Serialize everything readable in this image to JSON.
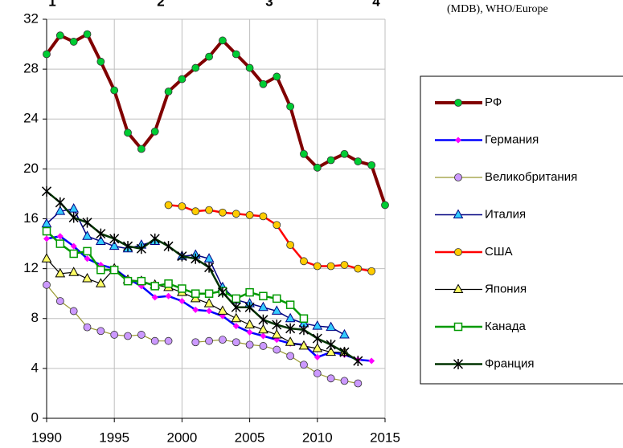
{
  "chart_data": {
    "type": "line",
    "annotations": [
      "1",
      "2",
      "3",
      "4"
    ],
    "source_note": "(MDB), WHO/Europe",
    "x": [
      1990,
      1991,
      1992,
      1993,
      1994,
      1995,
      1996,
      1997,
      1998,
      1999,
      2000,
      2001,
      2002,
      2003,
      2004,
      2005,
      2006,
      2007,
      2008,
      2009,
      2010,
      2011,
      2012,
      2013,
      2014,
      2015
    ],
    "xlim": [
      1990,
      2015
    ],
    "xticks": [
      1990,
      1995,
      2000,
      2005,
      2010,
      2015
    ],
    "ylim": [
      0,
      32
    ],
    "yticks": [
      0,
      4,
      8,
      12,
      16,
      20,
      24,
      28,
      32
    ],
    "grid": true,
    "legend": "right",
    "series": [
      {
        "name": "РФ",
        "color": "#800000",
        "marker": "circle",
        "marker_color": "#00cc33",
        "width": 4,
        "values": [
          29.2,
          30.7,
          30.2,
          30.8,
          28.6,
          26.3,
          22.9,
          21.6,
          23.0,
          26.2,
          27.2,
          28.1,
          29.0,
          30.3,
          29.2,
          28.1,
          26.8,
          27.4,
          25.0,
          21.2,
          20.1,
          20.7,
          21.2,
          20.6,
          20.3,
          17.1
        ]
      },
      {
        "name": "Германия",
        "color": "#0000ff",
        "marker": "diamond",
        "marker_color": "#ff00ff",
        "width": 2.5,
        "values": [
          14.4,
          14.6,
          13.8,
          12.8,
          12.3,
          12.0,
          11.2,
          10.6,
          9.7,
          9.8,
          9.4,
          8.7,
          8.6,
          8.2,
          7.4,
          6.9,
          6.6,
          6.3,
          6.0,
          5.9,
          4.9,
          5.3,
          5.1,
          4.7,
          4.6,
          null
        ]
      },
      {
        "name": "Великобритания",
        "color": "#999933",
        "marker": "circle",
        "marker_color": "#cc99ff",
        "width": 1.2,
        "values": [
          10.7,
          9.4,
          8.6,
          7.3,
          7.0,
          6.7,
          6.6,
          6.7,
          6.2,
          6.2,
          null,
          6.1,
          6.2,
          6.3,
          6.1,
          5.9,
          5.8,
          5.5,
          5.0,
          4.3,
          3.6,
          3.2,
          3.0,
          2.8,
          null,
          null
        ]
      },
      {
        "name": "Италия",
        "color": "#000080",
        "marker": "triangle",
        "marker_color": "#33ccff",
        "width": 1.5,
        "values": [
          15.6,
          16.6,
          16.8,
          14.6,
          14.2,
          13.8,
          13.6,
          13.9,
          14.2,
          null,
          13.0,
          13.1,
          12.8,
          10.5,
          9.5,
          9.2,
          8.9,
          8.6,
          8.0,
          7.6,
          7.4,
          7.3,
          6.7,
          null,
          null,
          null
        ]
      },
      {
        "name": "США",
        "color": "#ff0000",
        "marker": "circle",
        "marker_color": "#ffcc00",
        "width": 2.5,
        "values": [
          null,
          null,
          null,
          null,
          null,
          null,
          null,
          null,
          null,
          17.1,
          17.0,
          16.6,
          16.7,
          16.5,
          16.4,
          16.3,
          16.2,
          15.5,
          13.9,
          12.6,
          12.2,
          12.2,
          12.3,
          12.0,
          11.8,
          null
        ]
      },
      {
        "name": "Япония",
        "color": "#000000",
        "marker": "triangle",
        "marker_color": "#ffff66",
        "width": 1.2,
        "values": [
          12.8,
          11.6,
          11.7,
          11.2,
          10.8,
          12.0,
          11.1,
          11.0,
          10.7,
          10.5,
          10.1,
          9.6,
          9.2,
          8.6,
          8.0,
          7.5,
          7.1,
          6.7,
          6.1,
          5.8,
          5.6,
          5.3,
          5.3,
          null,
          null,
          null
        ]
      },
      {
        "name": "Канада",
        "color": "#009900",
        "marker": "square",
        "marker_color": "#ffffff",
        "width": 2.5,
        "values": [
          15.0,
          14.0,
          13.2,
          13.4,
          11.9,
          11.9,
          11.0,
          11.0,
          10.6,
          10.8,
          10.4,
          10.0,
          10.0,
          10.2,
          9.6,
          10.1,
          9.8,
          9.6,
          9.1,
          8.0,
          null,
          null,
          null,
          null,
          null,
          null
        ]
      },
      {
        "name": "Франция",
        "color": "#003300",
        "marker": "asterisk",
        "marker_color": "#000000",
        "width": 2.5,
        "values": [
          18.2,
          17.3,
          16.1,
          15.7,
          14.8,
          14.4,
          13.8,
          13.6,
          14.4,
          13.8,
          13.0,
          12.8,
          12.1,
          10.1,
          8.9,
          8.9,
          7.9,
          7.5,
          7.2,
          7.1,
          6.4,
          5.9,
          5.3,
          4.6,
          null,
          null
        ]
      }
    ]
  }
}
